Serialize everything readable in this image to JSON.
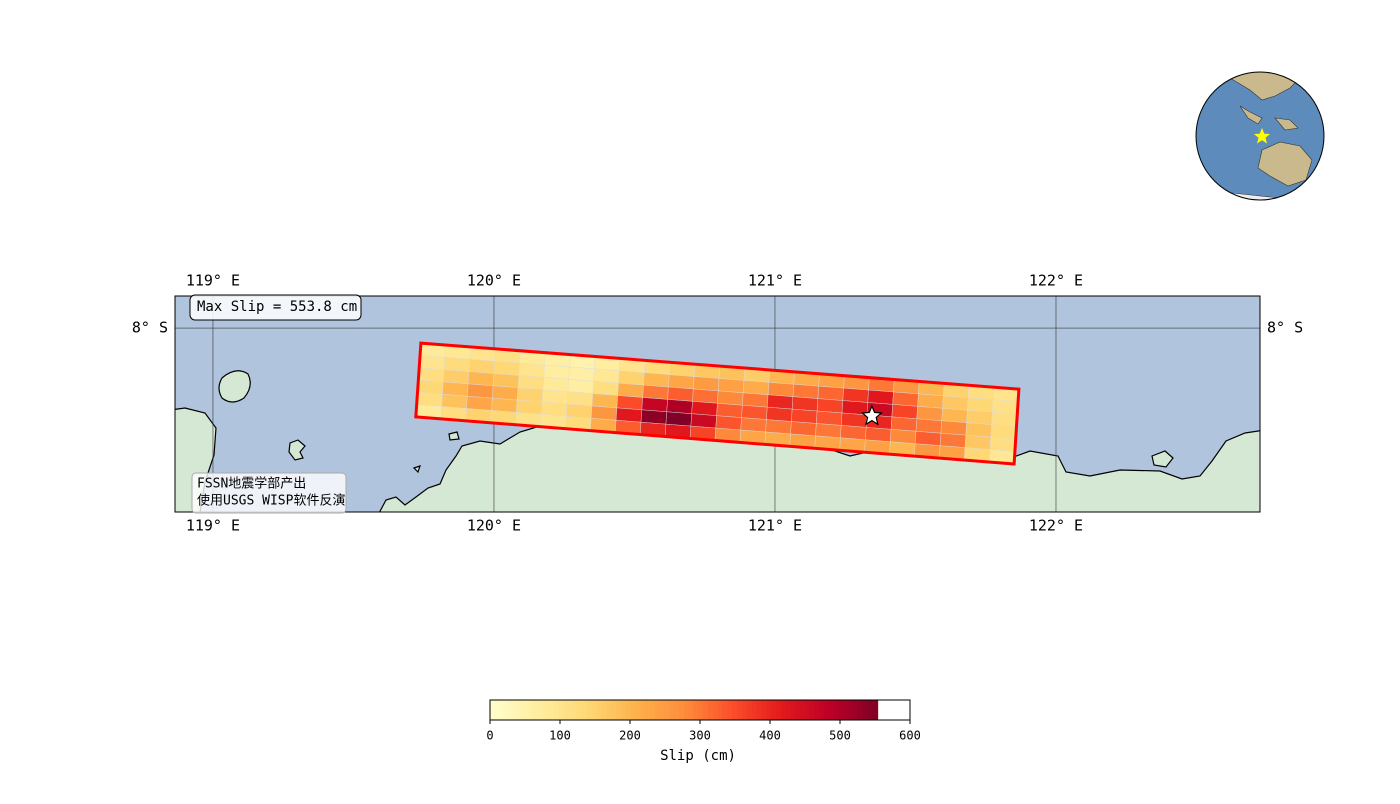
{
  "map": {
    "xlim": [
      118.865,
      122.726
    ],
    "ylim": [
      -8.648,
      -7.887
    ],
    "lon_ticks": [
      {
        "value": 119,
        "label": "119° E"
      },
      {
        "value": 120,
        "label": "120° E"
      },
      {
        "value": 121,
        "label": "121° E"
      },
      {
        "value": 122,
        "label": "122° E"
      }
    ],
    "lat_ticks": [
      {
        "value": -8,
        "label": "8° S"
      }
    ],
    "max_slip_label": "Max Slip = 553.8 cm",
    "credit": [
      "FSSN地震学部产出",
      "使用USGS WISP软件反演"
    ],
    "fault_corners": [
      [
        119.74,
        -8.053
      ],
      [
        121.868,
        -8.215
      ],
      [
        121.851,
        -8.479
      ],
      [
        119.722,
        -8.313
      ]
    ],
    "fault_color": "#ff0000",
    "epicenter": {
      "lon": 121.345,
      "lat": -8.31
    },
    "slip_grid": [
      [
        80,
        90,
        100,
        110,
        80,
        60,
        50,
        70,
        100,
        130,
        150,
        170,
        180,
        160,
        200,
        220,
        240,
        260,
        300,
        260,
        200,
        150,
        120,
        100
      ],
      [
        100,
        130,
        150,
        140,
        100,
        70,
        60,
        90,
        150,
        200,
        230,
        250,
        240,
        220,
        280,
        300,
        320,
        380,
        420,
        320,
        220,
        170,
        140,
        110
      ],
      [
        120,
        160,
        200,
        180,
        120,
        80,
        70,
        120,
        220,
        300,
        330,
        310,
        280,
        300,
        400,
        380,
        360,
        420,
        460,
        360,
        260,
        200,
        160,
        120
      ],
      [
        140,
        200,
        260,
        220,
        150,
        100,
        110,
        200,
        350,
        470,
        500,
        420,
        330,
        340,
        380,
        360,
        340,
        380,
        400,
        320,
        300,
        280,
        180,
        130
      ],
      [
        120,
        180,
        230,
        200,
        150,
        120,
        150,
        260,
        420,
        540,
        553.8,
        460,
        340,
        300,
        300,
        320,
        300,
        320,
        330,
        280,
        330,
        300,
        170,
        120
      ],
      [
        80,
        120,
        150,
        140,
        110,
        100,
        130,
        220,
        330,
        400,
        420,
        360,
        280,
        230,
        220,
        240,
        230,
        230,
        240,
        200,
        260,
        240,
        140,
        90
      ]
    ]
  },
  "colorbar": {
    "label": "Slip (cm)",
    "xlim": [
      0,
      600
    ],
    "xticks": [
      0,
      100,
      200,
      300,
      400,
      500,
      600
    ]
  }
}
